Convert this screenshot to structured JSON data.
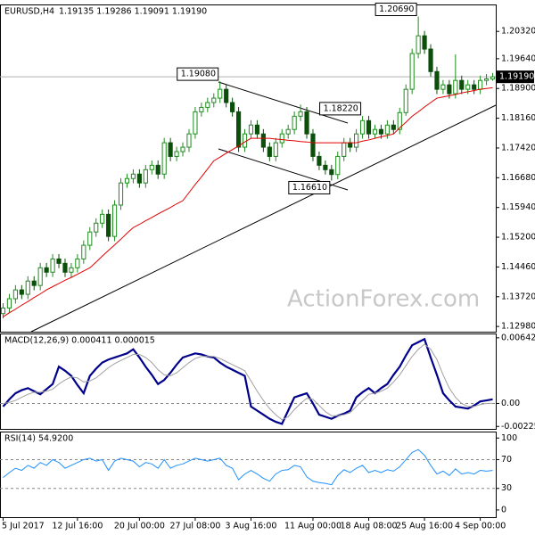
{
  "chart_data": [
    {
      "type": "candlestick",
      "title": "EURUSD,H4",
      "subtitle": "1.19135 1.19286 1.19091 1.19190",
      "watermark": "ActionForex.com",
      "up_color": "#1e8c1e",
      "down_color": "#0b4f0b",
      "ma_color": "#e00000",
      "categories": [
        "5 Jul 2017",
        null,
        null,
        null,
        null,
        null,
        null,
        null,
        null,
        null,
        null,
        null,
        "12 Jul 16:00",
        null,
        null,
        null,
        null,
        null,
        null,
        null,
        null,
        null,
        "20 Jul 00:00",
        null,
        null,
        null,
        null,
        null,
        null,
        null,
        null,
        "27 Jul 08:00",
        null,
        null,
        null,
        null,
        null,
        null,
        null,
        null,
        "3 Aug 16:00",
        null,
        null,
        null,
        null,
        null,
        null,
        null,
        null,
        null,
        "11 Aug 00:00",
        null,
        null,
        null,
        null,
        null,
        null,
        null,
        null,
        "18 Aug 08:00",
        null,
        null,
        null,
        null,
        null,
        null,
        null,
        null,
        "25 Aug 16:00",
        null,
        null,
        null,
        null,
        null,
        null,
        null,
        null,
        "4 Sep 00:00",
        null,
        null
      ],
      "open": [
        1.133,
        1.1344,
        1.1367,
        1.1389,
        1.1378,
        1.1411,
        1.14,
        1.1444,
        1.1433,
        1.1466,
        1.1455,
        1.1433,
        1.1444,
        1.1466,
        1.15,
        1.1533,
        1.1555,
        1.1577,
        1.1522,
        1.16,
        1.1655,
        1.1666,
        1.1677,
        1.1655,
        1.1688,
        1.1699,
        1.1677,
        1.1755,
        1.1721,
        1.1733,
        1.1744,
        1.1777,
        1.1832,
        1.1843,
        1.1855,
        1.1866,
        1.1888,
        1.1855,
        1.1832,
        1.1744,
        1.1777,
        1.1799,
        1.1777,
        1.1744,
        1.1721,
        1.1755,
        1.1777,
        1.1788,
        1.1821,
        1.1832,
        1.1777,
        1.1721,
        1.1699,
        1.1688,
        1.1676,
        1.1721,
        1.1755,
        1.1744,
        1.1777,
        1.181,
        1.1777,
        1.1788,
        1.1777,
        1.1799,
        1.1788,
        1.183,
        1.1888,
        1.1977,
        1.2021,
        1.1988,
        1.1932,
        1.1888,
        1.1899,
        1.1877,
        1.191,
        1.1888,
        1.1899,
        1.1888,
        1.191,
        1.19135
      ],
      "high": [
        1.1356,
        1.1379,
        1.1401,
        1.1401,
        1.1423,
        1.1423,
        1.1456,
        1.1456,
        1.1478,
        1.1478,
        1.1467,
        1.1456,
        1.1478,
        1.1512,
        1.1545,
        1.1567,
        1.1589,
        1.1589,
        1.1612,
        1.1667,
        1.1678,
        1.1689,
        1.1689,
        1.17,
        1.1711,
        1.1711,
        1.1767,
        1.1767,
        1.1745,
        1.1756,
        1.1789,
        1.1844,
        1.1855,
        1.1867,
        1.1878,
        1.1908,
        1.19,
        1.1867,
        1.1844,
        1.1789,
        1.1811,
        1.1811,
        1.1789,
        1.1756,
        1.1767,
        1.1789,
        1.18,
        1.1833,
        1.185,
        1.1844,
        1.1789,
        1.1733,
        1.1711,
        1.17,
        1.1733,
        1.1767,
        1.1767,
        1.1789,
        1.1822,
        1.1822,
        1.18,
        1.18,
        1.1811,
        1.1811,
        1.1842,
        1.19,
        1.1989,
        1.2069,
        1.2033,
        1.2,
        1.1944,
        1.1911,
        1.1911,
        1.1975,
        1.1922,
        1.1911,
        1.1911,
        1.1922,
        1.1926,
        1.19286
      ],
      "low": [
        1.1318,
        1.1332,
        1.1355,
        1.1366,
        1.1366,
        1.1388,
        1.1388,
        1.1421,
        1.1421,
        1.1443,
        1.1421,
        1.1421,
        1.1432,
        1.1454,
        1.1488,
        1.1521,
        1.1543,
        1.151,
        1.151,
        1.1588,
        1.1643,
        1.1654,
        1.1643,
        1.1643,
        1.1676,
        1.1665,
        1.1665,
        1.1709,
        1.1709,
        1.1721,
        1.1732,
        1.1765,
        1.182,
        1.1831,
        1.1843,
        1.1854,
        1.1843,
        1.182,
        1.1732,
        1.1732,
        1.1765,
        1.1765,
        1.1732,
        1.1709,
        1.1709,
        1.1743,
        1.1765,
        1.1776,
        1.1809,
        1.1765,
        1.1709,
        1.1687,
        1.1676,
        1.1661,
        1.1664,
        1.1709,
        1.1732,
        1.1732,
        1.1765,
        1.1765,
        1.1765,
        1.1765,
        1.1765,
        1.1776,
        1.1776,
        1.1822,
        1.1876,
        1.1965,
        1.1976,
        1.192,
        1.1876,
        1.1876,
        1.1865,
        1.1865,
        1.1876,
        1.1876,
        1.1876,
        1.1876,
        1.1898,
        1.19091
      ],
      "close": [
        1.1344,
        1.1367,
        1.1389,
        1.1378,
        1.1411,
        1.14,
        1.1444,
        1.1433,
        1.1466,
        1.1455,
        1.1433,
        1.1444,
        1.1466,
        1.15,
        1.1533,
        1.1555,
        1.1577,
        1.1522,
        1.16,
        1.1655,
        1.1666,
        1.1677,
        1.1655,
        1.1688,
        1.1699,
        1.1677,
        1.1755,
        1.1721,
        1.1733,
        1.1744,
        1.1777,
        1.1832,
        1.1843,
        1.1855,
        1.1866,
        1.1888,
        1.1855,
        1.1832,
        1.1744,
        1.1777,
        1.1799,
        1.1777,
        1.1744,
        1.1721,
        1.1755,
        1.1777,
        1.1788,
        1.1821,
        1.1832,
        1.1777,
        1.1721,
        1.1699,
        1.1688,
        1.1676,
        1.1721,
        1.1755,
        1.1744,
        1.1777,
        1.181,
        1.1777,
        1.1788,
        1.1777,
        1.1799,
        1.1788,
        1.183,
        1.1888,
        1.1977,
        1.2021,
        1.1988,
        1.1932,
        1.1888,
        1.1899,
        1.1877,
        1.191,
        1.1888,
        1.1899,
        1.1888,
        1.191,
        1.1914,
        1.1919
      ],
      "ma": [
        1.1322,
        1.1332,
        1.1341,
        1.1351,
        1.136,
        1.137,
        1.1379,
        1.1389,
        1.1397,
        1.1405,
        1.1413,
        1.142,
        1.1428,
        1.1436,
        1.1444,
        1.1458,
        1.1473,
        1.1487,
        1.1501,
        1.1515,
        1.153,
        1.1544,
        1.1552,
        1.1561,
        1.1569,
        1.1578,
        1.1586,
        1.1594,
        1.1603,
        1.1611,
        1.1631,
        1.1651,
        1.167,
        1.169,
        1.171,
        1.1719,
        1.1729,
        1.1738,
        1.1747,
        1.1757,
        1.1766,
        1.1766,
        1.1766,
        1.1766,
        1.1764,
        1.1763,
        1.1761,
        1.176,
        1.1758,
        1.1757,
        1.1755,
        1.1755,
        1.1755,
        1.1755,
        1.1755,
        1.1755,
        1.1755,
        1.1755,
        1.1759,
        1.1762,
        1.1766,
        1.177,
        1.1773,
        1.1777,
        1.1792,
        1.1806,
        1.1821,
        1.1832,
        1.1844,
        1.1855,
        1.1866,
        1.1869,
        1.1872,
        1.1875,
        1.1879,
        1.1882,
        1.1885,
        1.1888,
        1.189,
        1.1892
      ],
      "annotations": [
        {
          "value": 1.1908,
          "label": "1.19080"
        },
        {
          "value": 1.1661,
          "label": "1.16610"
        },
        {
          "value": 1.2069,
          "label": "1.20690"
        },
        {
          "value": 1.1822,
          "label": "1.18220"
        }
      ],
      "last_price": {
        "value": 1.1919,
        "label": "1.19190"
      },
      "ylim": [
        1.1285,
        1.2099
      ],
      "yticks": [
        {
          "value": 1.1298,
          "label": "1.12980"
        },
        {
          "value": 1.1372,
          "label": "1.13720"
        },
        {
          "value": 1.1446,
          "label": "1.14460"
        },
        {
          "value": 1.152,
          "label": "1.15200"
        },
        {
          "value": 1.1594,
          "label": "1.15940"
        },
        {
          "value": 1.1668,
          "label": "1.16680"
        },
        {
          "value": 1.1742,
          "label": "1.17420"
        },
        {
          "value": 1.1816,
          "label": "1.18160"
        },
        {
          "value": 1.189,
          "label": "1.18900"
        },
        {
          "value": 1.1964,
          "label": "1.19640"
        },
        {
          "value": 1.2032,
          "label": "1.20320"
        }
      ]
    },
    {
      "type": "line",
      "title": "MACD(12,26,9) 0.000411 0.000015",
      "series": [
        {
          "name": "MACD",
          "color": "#00008b",
          "width": 2.2,
          "values": [
            -0.0003,
            0.0004,
            0.001,
            0.0013,
            0.0015,
            0.0012,
            0.0009,
            0.0014,
            0.0019,
            0.0036,
            0.0032,
            0.0027,
            0.0018,
            0.001,
            0.0027,
            0.0034,
            0.004,
            0.0043,
            0.0045,
            0.0047,
            0.0049,
            0.0053,
            0.0045,
            0.0036,
            0.0028,
            0.0019,
            0.0023,
            0.003,
            0.0038,
            0.0045,
            0.0047,
            0.0049,
            0.0048,
            0.0046,
            0.0045,
            0.004,
            0.0036,
            0.0033,
            0.003,
            0.0027,
            -0.0003,
            -0.0007,
            -0.0011,
            -0.0015,
            -0.0018,
            -0.002,
            -0.0007,
            0.0006,
            0.0008,
            0.001,
            0.0,
            -0.0011,
            -0.0013,
            -0.0015,
            -0.0012,
            -0.001,
            -0.0007,
            0.0006,
            0.0011,
            0.0015,
            0.001,
            0.0015,
            0.0019,
            0.0028,
            0.0036,
            0.0047,
            0.0057,
            0.006,
            0.0063,
            0.0045,
            0.0028,
            0.001,
            0.0003,
            -0.0003,
            -0.0004,
            -0.0005,
            -0.0002,
            0.0002,
            0.0003,
            0.000411
          ]
        },
        {
          "name": "Signal",
          "color": "#a0a0a0",
          "width": 1,
          "values": [
            0.0,
            0.0001,
            0.0003,
            0.0006,
            0.0009,
            0.0011,
            0.0011,
            0.0012,
            0.0014,
            0.0019,
            0.0023,
            0.0026,
            0.0025,
            0.0021,
            0.0022,
            0.0025,
            0.003,
            0.0035,
            0.0039,
            0.0042,
            0.0045,
            0.0048,
            0.0048,
            0.0045,
            0.004,
            0.0033,
            0.0028,
            0.0027,
            0.003,
            0.0035,
            0.004,
            0.0044,
            0.0046,
            0.0046,
            0.0046,
            0.0044,
            0.0041,
            0.0038,
            0.0035,
            0.0032,
            0.0022,
            0.0012,
            0.0003,
            -0.0005,
            -0.0011,
            -0.0016,
            -0.0013,
            -0.0006,
            0.0,
            0.0005,
            0.0004,
            -0.0002,
            -0.0008,
            -0.0012,
            -0.0012,
            -0.0011,
            -0.0009,
            -0.0003,
            0.0003,
            0.0009,
            0.001,
            0.0012,
            0.0015,
            0.0021,
            0.0028,
            0.0037,
            0.0046,
            0.0053,
            0.0058,
            0.0053,
            0.0043,
            0.0028,
            0.0015,
            0.0006,
            0.0,
            -0.0003,
            -0.0003,
            -0.0001,
            0.0,
            1.5e-05
          ]
        }
      ],
      "levels": [
        0
      ],
      "ylim": [
        -0.00249,
        0.00685
      ],
      "yticks": [
        0.006425,
        {
          "value": 0,
          "label": "0.00"
        },
        -0.002251
      ]
    },
    {
      "type": "line",
      "title": "RSI(14) 54.9200",
      "series": [
        {
          "name": "RSI",
          "color": "#1e90ff",
          "width": 1,
          "values": [
            45,
            52,
            58,
            55,
            62,
            58,
            66,
            62,
            70,
            66,
            58,
            62,
            66,
            70,
            72,
            68,
            70,
            55,
            68,
            72,
            70,
            68,
            60,
            66,
            64,
            58,
            70,
            58,
            62,
            64,
            68,
            72,
            70,
            68,
            70,
            72,
            62,
            58,
            42,
            50,
            55,
            50,
            44,
            40,
            50,
            55,
            56,
            62,
            60,
            46,
            40,
            38,
            37,
            35,
            48,
            56,
            52,
            58,
            62,
            52,
            55,
            52,
            56,
            54,
            60,
            70,
            80,
            84,
            76,
            62,
            50,
            54,
            48,
            57,
            50,
            52,
            50,
            55,
            54,
            54.92
          ]
        }
      ],
      "levels": [
        70,
        30
      ],
      "ylim": [
        -10,
        109
      ],
      "yticks": [
        100,
        70,
        30,
        0
      ]
    }
  ]
}
